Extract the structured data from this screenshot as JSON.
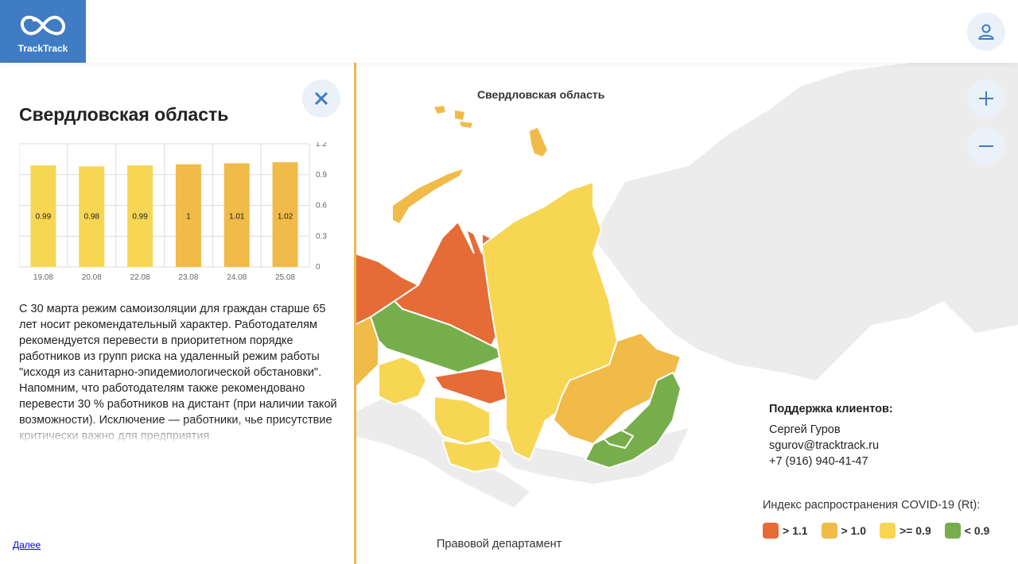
{
  "app": {
    "name": "TrackTrack"
  },
  "colors": {
    "accent": "#3f7cc3",
    "high": "#e56b37",
    "mid": "#f0bb48",
    "ok": "#f7d654",
    "low": "#77ae4c",
    "land": "#ececec"
  },
  "panel": {
    "region_title": "Свердловская область",
    "description": "С 30 марта режим самоизоляции для граждан старше 65 лет носит рекомендательный характер. Работодателям рекомендуется перевести в приоритетном порядке работников из групп риска на удаленный режим работы \"исходя из санитарно-эпидемиологической обстановки\". Напомним, что работодателям также рекомендовано перевести 30 % работников на дистант (при наличии такой возможности). Исключение — работники, чье присутствие критически важно для предприятия",
    "more_link": "Далее"
  },
  "chart_data": {
    "type": "bar",
    "categories": [
      "19.08",
      "20.08",
      "22.08",
      "23.08",
      "24.08",
      "25.08"
    ],
    "values": [
      0.99,
      0.98,
      0.99,
      1,
      1.01,
      1.02
    ],
    "value_labels": [
      "0.99",
      "0.98",
      "0.99",
      "1",
      "1.01",
      "1.02"
    ],
    "ylim": [
      0,
      1.2
    ],
    "yticks": [
      "0",
      "0.3",
      "0.6",
      "0.9",
      "1.2"
    ],
    "ytick_values": [
      0,
      0.3,
      0.6,
      0.9,
      1.2
    ],
    "bar_colors": [
      "#f7d654",
      "#f7d654",
      "#f7d654",
      "#f0bb48",
      "#f0bb48",
      "#f0bb48"
    ],
    "grid": true
  },
  "map": {
    "region_label": "Свердловская область",
    "department": "Правовой департамент"
  },
  "support": {
    "title": "Поддержка клиентов:",
    "name": "Сергей Гуров",
    "email": "sgurov@tracktrack.ru",
    "phone": "+7 (916) 940-41-47"
  },
  "legend": {
    "title": "Индекс распространения COVID-19 (Rt):",
    "items": [
      {
        "label": "> 1.1",
        "color": "#e56b37"
      },
      {
        "label": "> 1.0",
        "color": "#f0bb48"
      },
      {
        "label": ">= 0.9",
        "color": "#f7d654"
      },
      {
        "label": "< 0.9",
        "color": "#77ae4c"
      }
    ]
  }
}
